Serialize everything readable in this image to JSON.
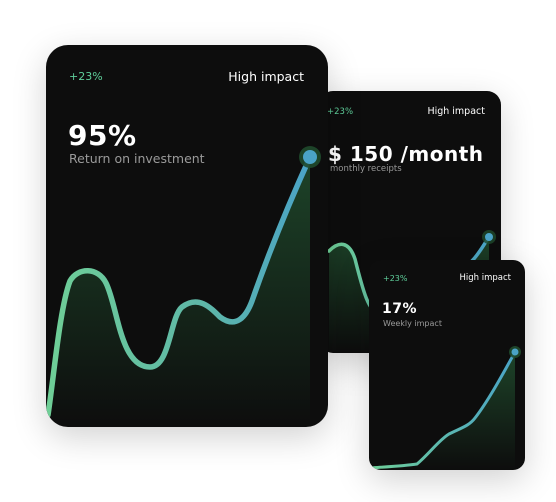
{
  "cards": [
    {
      "id": "roi",
      "badge": "+23%",
      "tag": "High impact",
      "value": "95%",
      "caption": "Return on investment"
    },
    {
      "id": "monthly",
      "badge": "+23%",
      "tag": "High impact",
      "value": "$ 150 /month",
      "caption": "monthly receipts"
    },
    {
      "id": "weekly",
      "badge": "+23%",
      "tag": "High impact",
      "value": "17%",
      "caption": "Weekly impact"
    }
  ],
  "colors": {
    "card_background": "#0d0d0d",
    "line_start": "#6fcf97",
    "line_end": "#4aa3c7",
    "badge": "#5fcf9b",
    "area_fill": "#1f4a2c"
  },
  "chart_data": [
    {
      "type": "line",
      "card": "roi",
      "series": [
        {
          "values": [
            2,
            62,
            64,
            18,
            12,
            42,
            38,
            31,
            35,
            98
          ]
        }
      ]
    },
    {
      "type": "line",
      "card": "monthly",
      "series": [
        {
          "values": [
            72,
            74,
            30,
            28,
            55,
            95
          ]
        }
      ]
    },
    {
      "type": "line",
      "card": "weekly",
      "series": [
        {
          "values": [
            0,
            2,
            5,
            22,
            35,
            95
          ]
        }
      ]
    }
  ]
}
